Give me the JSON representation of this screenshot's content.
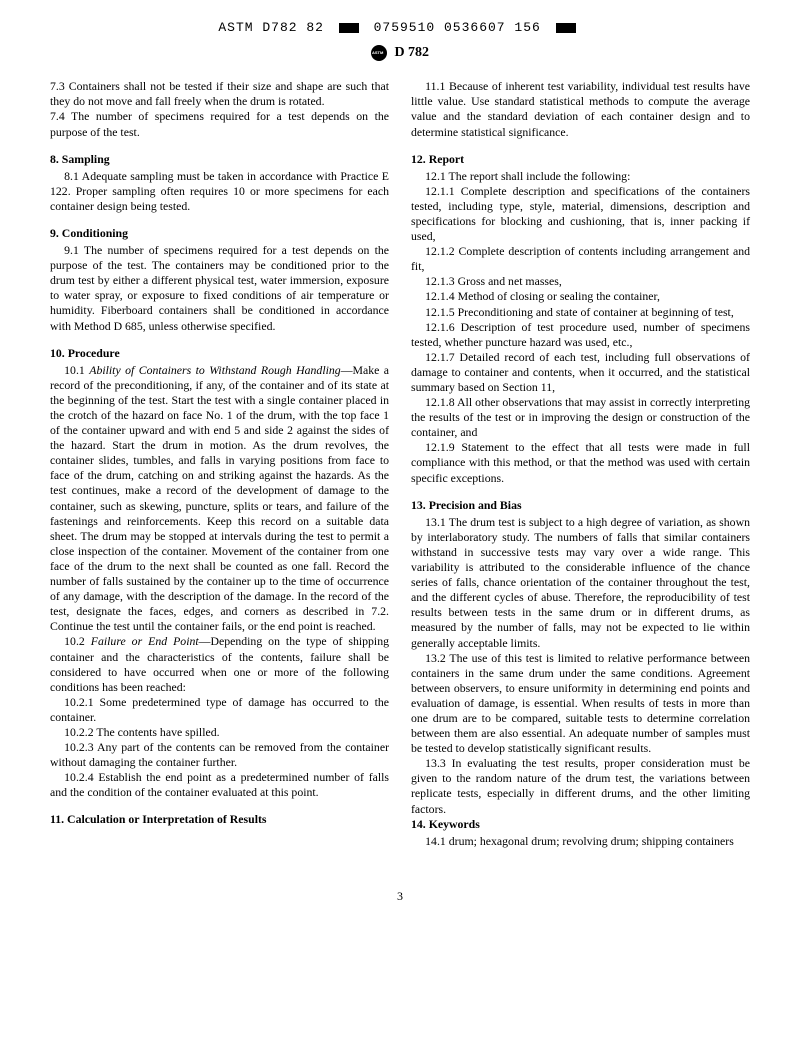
{
  "topcode_left": "ASTM D782 82",
  "topcode_right": "0759510 0536607 156",
  "std_label": "D 782",
  "page_number": "3",
  "left": {
    "p7_3": "7.3 Containers shall not be tested if their size and shape are such that they do not move and fall freely when the drum is rotated.",
    "p7_4": "7.4 The number of specimens required for a test depends on the purpose of the test.",
    "s8_title": "8. Sampling",
    "p8_1": "8.1 Adequate sampling must be taken in accordance with Practice E 122. Proper sampling often requires 10 or more specimens for each container design being tested.",
    "s9_title": "9. Conditioning",
    "p9_1": "9.1 The number of specimens required for a test depends on the purpose of the test. The containers may be conditioned prior to the drum test by either a different physical test, water immersion, exposure to water spray, or exposure to fixed conditions of air temperature or humidity. Fiberboard containers shall be conditioned in accordance with Method D 685, unless otherwise specified.",
    "s10_title": "10. Procedure",
    "p10_1_lead": "10.1 ",
    "p10_1_ital": "Ability of Containers to Withstand Rough Handling",
    "p10_1_body": "—Make a record of the preconditioning, if any, of the container and of its state at the beginning of the test. Start the test with a single container placed in the crotch of the hazard on face No. 1 of the drum, with the top face 1 of the container upward and with end 5 and side 2 against the sides of the hazard. Start the drum in motion. As the drum revolves, the container slides, tumbles, and falls in varying positions from face to face of the drum, catching on and striking against the hazards. As the test continues, make a record of the development of damage to the container, such as skewing, puncture, splits or tears, and failure of the fastenings and reinforcements. Keep this record on a suitable data sheet. The drum may be stopped at intervals during the test to permit a close inspection of the container. Movement of the container from one face of the drum to the next shall be counted as one fall. Record the number of falls sustained by the container up to the time of occurrence of any damage, with the description of the damage. In the record of the test, designate the faces, edges, and corners as described in 7.2. Continue the test until the container fails, or the end point is reached.",
    "p10_2_lead": "10.2 ",
    "p10_2_ital": "Failure or End Point",
    "p10_2_body": "—Depending on the type of shipping container and the characteristics of the contents, failure shall be considered to have occurred when one or more of the following conditions has been reached:",
    "p10_2_1": "10.2.1 Some predetermined type of damage has occurred to the container.",
    "p10_2_2": "10.2.2 The contents have spilled.",
    "p10_2_3": "10.2.3 Any part of the contents can be removed from the container without damaging the container further.",
    "p10_2_4": "10.2.4 Establish the end point as a predetermined number of falls and the condition of the container evaluated at this point."
  },
  "right": {
    "s11_title": "11. Calculation or Interpretation of Results",
    "p11_1": "11.1 Because of inherent test variability, individual test results have little value. Use standard statistical methods to compute the average value and the standard deviation of each container design and to determine statistical significance.",
    "s12_title": "12. Report",
    "p12_1": "12.1 The report shall include the following:",
    "p12_1_1": "12.1.1 Complete description and specifications of the containers tested, including type, style, material, dimensions, description and specifications for blocking and cushioning, that is, inner packing if used,",
    "p12_1_2": "12.1.2 Complete description of contents including arrangement and fit,",
    "p12_1_3": "12.1.3 Gross and net masses,",
    "p12_1_4": "12.1.4 Method of closing or sealing the container,",
    "p12_1_5": "12.1.5 Preconditioning and state of container at beginning of test,",
    "p12_1_6": "12.1.6 Description of test procedure used, number of specimens tested, whether puncture hazard was used, etc.,",
    "p12_1_7": "12.1.7 Detailed record of each test, including full observations of damage to container and contents, when it occurred, and the statistical summary based on Section 11,",
    "p12_1_8": "12.1.8 All other observations that may assist in correctly interpreting the results of the test or in improving the design or construction of the container, and",
    "p12_1_9": "12.1.9 Statement to the effect that all tests were made in full compliance with this method, or that the method was used with certain specific exceptions.",
    "s13_title": "13. Precision and Bias",
    "p13_1": "13.1 The drum test is subject to a high degree of variation, as shown by interlaboratory study. The numbers of falls that similar containers withstand in successive tests may vary over a wide range. This variability is attributed to the considerable influence of the chance series of falls, chance orientation of the container throughout the test, and the different cycles of abuse. Therefore, the reproducibility of test results between tests in the same drum or in different drums, as measured by the number of falls, may not be expected to lie within generally acceptable limits.",
    "p13_2": "13.2 The use of this test is limited to relative performance between containers in the same drum under the same conditions. Agreement between observers, to ensure uniformity in determining end points and evaluation of damage, is essential. When results of tests in more than one drum are to be compared, suitable tests to determine correlation between them are also essential. An adequate number of samples must be tested to develop statistically significant results.",
    "p13_3": "13.3 In evaluating the test results, proper consideration must be given to the random nature of the drum test, the variations between replicate tests, especially in different drums, and the other limiting factors.",
    "s14_title": "14. Keywords",
    "p14_1": "14.1 drum; hexagonal drum; revolving drum; shipping containers"
  }
}
